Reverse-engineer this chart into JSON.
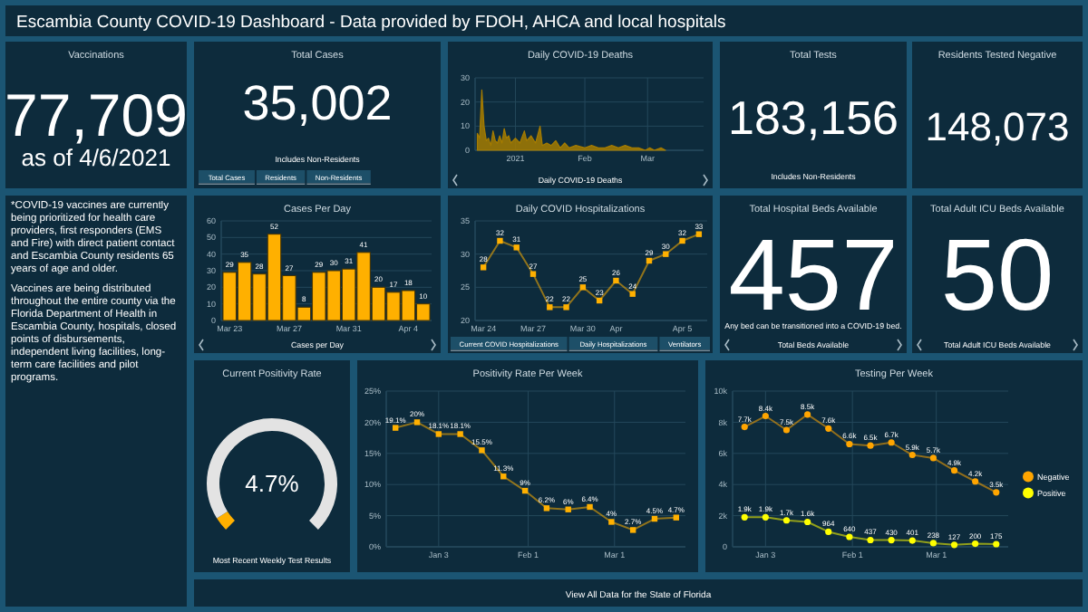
{
  "chart_data": [
    {
      "type": "other",
      "title": "Escambia County COVID-19 Dashboard - Data provided by FDOH, AHCA and local hospitals"
    },
    {
      "type": "other",
      "title": "Vaccinations",
      "annotations": [
        "77,709",
        "as of 4/6/2021"
      ]
    },
    {
      "type": "other",
      "title": "Total Cases",
      "annotations": [
        "35,002",
        "Includes Non-Residents",
        "Total Cases",
        "Residents",
        "Non-Residents"
      ]
    },
    {
      "type": "area",
      "title": "Daily COVID-19 Deaths",
      "xlabel": "Daily COVID-19 Deaths",
      "color": "#a67c00",
      "grid": true,
      "x": [
        "2020-12-15",
        "2020-12-16",
        "2020-12-17",
        "2020-12-18",
        "2020-12-19",
        "2020-12-20",
        "2020-12-21",
        "2020-12-22",
        "2020-12-23",
        "2020-12-24",
        "2020-12-25",
        "2020-12-26",
        "2020-12-27",
        "2020-12-28",
        "2020-12-29",
        "2020-12-30",
        "2021-01-01",
        "2021-01-03",
        "2021-01-05",
        "2021-01-06",
        "2021-01-08",
        "2021-01-10",
        "2021-01-12",
        "2021-01-13",
        "2021-01-15",
        "2021-01-17",
        "2021-01-19",
        "2021-01-21",
        "2021-01-23",
        "2021-01-25",
        "2021-01-28",
        "2021-02-01",
        "2021-02-04",
        "2021-02-07",
        "2021-02-10",
        "2021-02-13",
        "2021-02-16",
        "2021-02-19",
        "2021-02-22",
        "2021-02-25",
        "2021-02-28",
        "2021-03-02",
        "2021-03-04",
        "2021-03-07",
        "2021-03-09"
      ],
      "values": [
        7,
        5,
        25,
        10,
        4,
        5,
        2,
        8,
        4,
        3,
        6,
        3,
        9,
        5,
        6,
        3,
        5,
        3,
        8,
        4,
        6,
        3,
        10,
        2,
        3,
        2,
        4,
        1,
        3,
        1,
        2,
        1,
        2,
        1,
        1,
        2,
        1,
        2,
        1,
        1,
        0,
        1,
        0,
        1,
        0
      ],
      "xlim": [
        "2020-12-14",
        "2021-03-26"
      ],
      "xticks": [
        {
          "value": "2021-01-01",
          "label": "2021"
        },
        {
          "value": "2021-02-01",
          "label": "Feb"
        },
        {
          "value": "2021-03-01",
          "label": "Mar"
        }
      ],
      "ylim": [
        0,
        30
      ],
      "yticks": [
        0,
        10,
        20,
        30
      ]
    },
    {
      "type": "other",
      "title": "Total Tests",
      "annotations": [
        "183,156",
        "Includes Non-Residents"
      ]
    },
    {
      "type": "other",
      "title": "Residents Tested Negative",
      "annotations": [
        "148,073"
      ]
    },
    {
      "type": "other",
      "annotations": [
        "*COVID-19 vaccines are currently being prioritized for health care providers, first responders (EMS and Fire) with direct patient contact and Escambia County residents 65 years of age and older.",
        "Vaccines are being distributed throughout the entire county via the Florida Department of Health in Escambia County, hospitals, closed points of disbursements, independent living facilities, long-term care facilities and pilot programs."
      ]
    },
    {
      "type": "bar",
      "title": "Cases Per Day",
      "xlabel": "Cases per Day",
      "color": "#ffb000",
      "grid": "y",
      "data_labels": true,
      "categories": [
        "Mar 23",
        null,
        null,
        null,
        "Mar 27",
        null,
        null,
        null,
        "Mar 31",
        null,
        null,
        null,
        "Apr 4",
        null
      ],
      "values": [
        29,
        35,
        28,
        52,
        27,
        8,
        29,
        30,
        31,
        41,
        20,
        17,
        18,
        10
      ],
      "ylim": [
        0,
        60
      ],
      "yticks": [
        0,
        10,
        20,
        30,
        40,
        50,
        60
      ]
    },
    {
      "type": "line",
      "title": "Daily COVID Hospitalizations",
      "color": "#ffb000",
      "grid": "y",
      "data_labels": true,
      "marker": "square",
      "categories": [
        "Mar 24",
        null,
        null,
        "Mar 27",
        null,
        null,
        "Mar 30",
        null,
        "Apr",
        null,
        null,
        null,
        "Apr 5",
        null
      ],
      "values": [
        28,
        32,
        31,
        27,
        22,
        22,
        25,
        23,
        26,
        24,
        29,
        30,
        32,
        33
      ],
      "ylim": [
        20,
        35
      ],
      "yticks": [
        20,
        25,
        30,
        35
      ],
      "annotations": [
        "Current COVID Hospitalizations",
        "Daily Hospitalizations",
        "Ventilators"
      ]
    },
    {
      "type": "other",
      "title": "Total Hospital Beds Available",
      "annotations": [
        "457",
        "Any bed can be transitioned into a COVID-19 bed.",
        "Total Beds Available"
      ]
    },
    {
      "type": "other",
      "title": "Total Adult ICU Beds Available",
      "annotations": [
        "50",
        "Total Adult ICU Beds Available"
      ]
    },
    {
      "type": "donut",
      "title": "Current Positivity Rate",
      "categories": [
        null,
        null
      ],
      "values": [
        4.7,
        95.3
      ],
      "colors": [
        "#ffb000",
        "#e3e3e3"
      ],
      "annotations": [
        "4.7%",
        "Most Recent Weekly Test Results"
      ]
    },
    {
      "type": "line",
      "title": "Positivity Rate Per Week",
      "color": "#ffb000",
      "grid": true,
      "marker": "square",
      "x": [
        "2020-12-20",
        "2020-12-27",
        "2021-01-03",
        "2021-01-10",
        "2021-01-17",
        "2021-01-24",
        "2021-01-31",
        "2021-02-07",
        "2021-02-14",
        "2021-02-21",
        "2021-02-28",
        "2021-03-07",
        "2021-03-14",
        "2021-03-21"
      ],
      "values": [
        19.1,
        20,
        18.1,
        18.1,
        15.5,
        11.3,
        9,
        6.2,
        6,
        6.4,
        4,
        2.7,
        4.5,
        4.7
      ],
      "value_labels": [
        "19.1%",
        "20%",
        "18.1%",
        "18.1%",
        "15.5%",
        "11.3%",
        "9%",
        "6.2%",
        "6%",
        "6.4%",
        "4%",
        "2.7%",
        "4.5%",
        "4.7%"
      ],
      "xlim": [
        "2020-12-17",
        "2021-03-24"
      ],
      "xticks": [
        {
          "value": "2021-01-03",
          "label": "Jan 3"
        },
        {
          "value": "2021-02-01",
          "label": "Feb 1"
        },
        {
          "value": "2021-03-01",
          "label": "Mar 1"
        }
      ],
      "ylim": [
        0,
        25
      ],
      "yticks": [
        {
          "value": 0,
          "label": "0%"
        },
        {
          "value": 5,
          "label": "5%"
        },
        {
          "value": 10,
          "label": "10%"
        },
        {
          "value": 15,
          "label": "15%"
        },
        {
          "value": 20,
          "label": "20%"
        },
        {
          "value": 25,
          "label": "25%"
        }
      ]
    },
    {
      "type": "line",
      "title": "Testing Per Week",
      "grid": true,
      "marker": "circle",
      "legend": "right",
      "x": [
        "2020-12-27",
        "2021-01-03",
        "2021-01-10",
        "2021-01-17",
        "2021-01-24",
        "2021-01-31",
        "2021-02-07",
        "2021-02-14",
        "2021-02-21",
        "2021-02-28",
        "2021-03-07",
        "2021-03-14",
        "2021-03-21"
      ],
      "series": [
        {
          "name": "Negative",
          "color": "#ffa500",
          "values": [
            7700,
            8400,
            7500,
            8500,
            7600,
            6600,
            6500,
            6700,
            5900,
            5700,
            4900,
            4200,
            3500
          ],
          "value_labels": [
            "7.7k",
            "8.4k",
            "7.5k",
            "8.5k",
            "7.6k",
            "6.6k",
            "6.5k",
            "6.7k",
            "5.9k",
            "5.7k",
            "4.9k",
            "4.2k",
            "3.5k"
          ]
        },
        {
          "name": "Positive",
          "color": "#ffff00",
          "values": [
            1900,
            1900,
            1700,
            1600,
            964,
            640,
            437,
            430,
            401,
            238,
            127,
            200,
            175
          ],
          "value_labels": [
            "1.9k",
            "1.9k",
            "1.7k",
            "1.6k",
            "964",
            "640",
            "437",
            "430",
            "401",
            "238",
            "127",
            "200",
            "175"
          ]
        }
      ],
      "xlim": [
        "2020-12-23",
        "2021-03-25"
      ],
      "xticks": [
        {
          "value": "2021-01-03",
          "label": "Jan 3"
        },
        {
          "value": "2021-02-01",
          "label": "Feb 1"
        },
        {
          "value": "2021-03-01",
          "label": "Mar 1"
        }
      ],
      "ylim": [
        0,
        10000
      ],
      "yticks": [
        {
          "value": 0,
          "label": "0"
        },
        {
          "value": 2000,
          "label": "2k"
        },
        {
          "value": 4000,
          "label": "4k"
        },
        {
          "value": 6000,
          "label": "6k"
        },
        {
          "value": 8000,
          "label": "8k"
        },
        {
          "value": 10000,
          "label": "10k"
        }
      ]
    },
    {
      "type": "other",
      "annotations": [
        "View All Data for the State of Florida"
      ]
    }
  ]
}
